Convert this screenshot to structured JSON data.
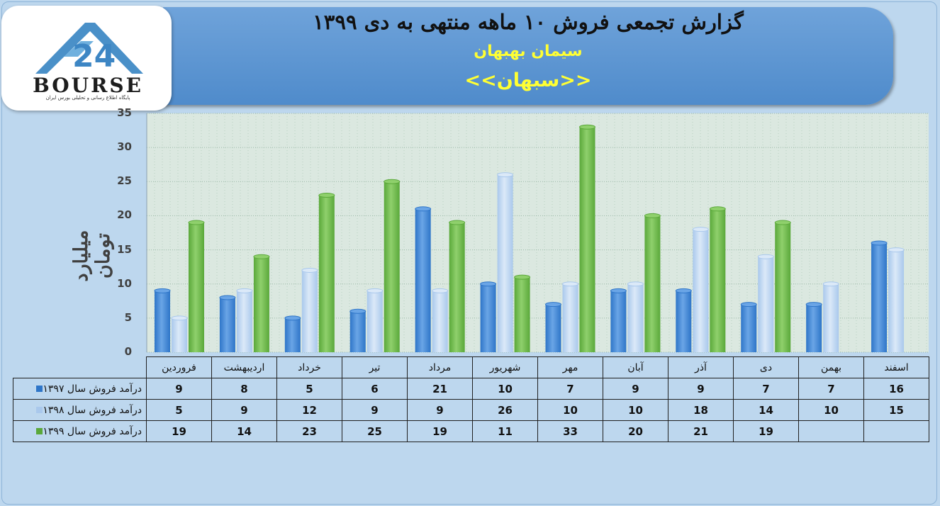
{
  "header": {
    "title": "گزارش تجمعی فروش ۱۰ ماهه منتهی به دی ۱۳۹۹",
    "company": "سیمان بهبهان",
    "symbol": "<<سبهان>>"
  },
  "logo": {
    "word": "BOURSE",
    "caption": "پایگاه اطلاع رسانی و تحلیلی بورس ایران",
    "mark": "24"
  },
  "colors": {
    "series_1397": "#2e75c8",
    "series_1398": "#a9c8ec",
    "series_1399": "#5aa83a",
    "background": "#bdd7ee",
    "banner": "#5b9bd5",
    "accent_text": "#ffff33"
  },
  "chart_data": {
    "type": "bar",
    "ylabel": "میلیارد تومان",
    "ylim": [
      0,
      35
    ],
    "yticks": [
      0,
      5,
      10,
      15,
      20,
      25,
      30,
      35
    ],
    "grid": true,
    "categories": [
      "فروردین",
      "اردیبهشت",
      "خرداد",
      "تیر",
      "مرداد",
      "شهریور",
      "مهر",
      "آبان",
      "آذر",
      "دی",
      "بهمن",
      "اسفند"
    ],
    "series": [
      {
        "name": "درآمد فروش سال ۱۳۹۷",
        "values": [
          9,
          8,
          5,
          6,
          21,
          10,
          7,
          9,
          9,
          7,
          7,
          16
        ]
      },
      {
        "name": "درآمد فروش سال ۱۳۹۸",
        "values": [
          5,
          9,
          12,
          9,
          9,
          26,
          10,
          10,
          18,
          14,
          10,
          15
        ]
      },
      {
        "name": "درآمد فروش سال ۱۳۹۹",
        "values": [
          19,
          14,
          23,
          25,
          19,
          11,
          33,
          20,
          21,
          19,
          null,
          null
        ]
      }
    ]
  }
}
